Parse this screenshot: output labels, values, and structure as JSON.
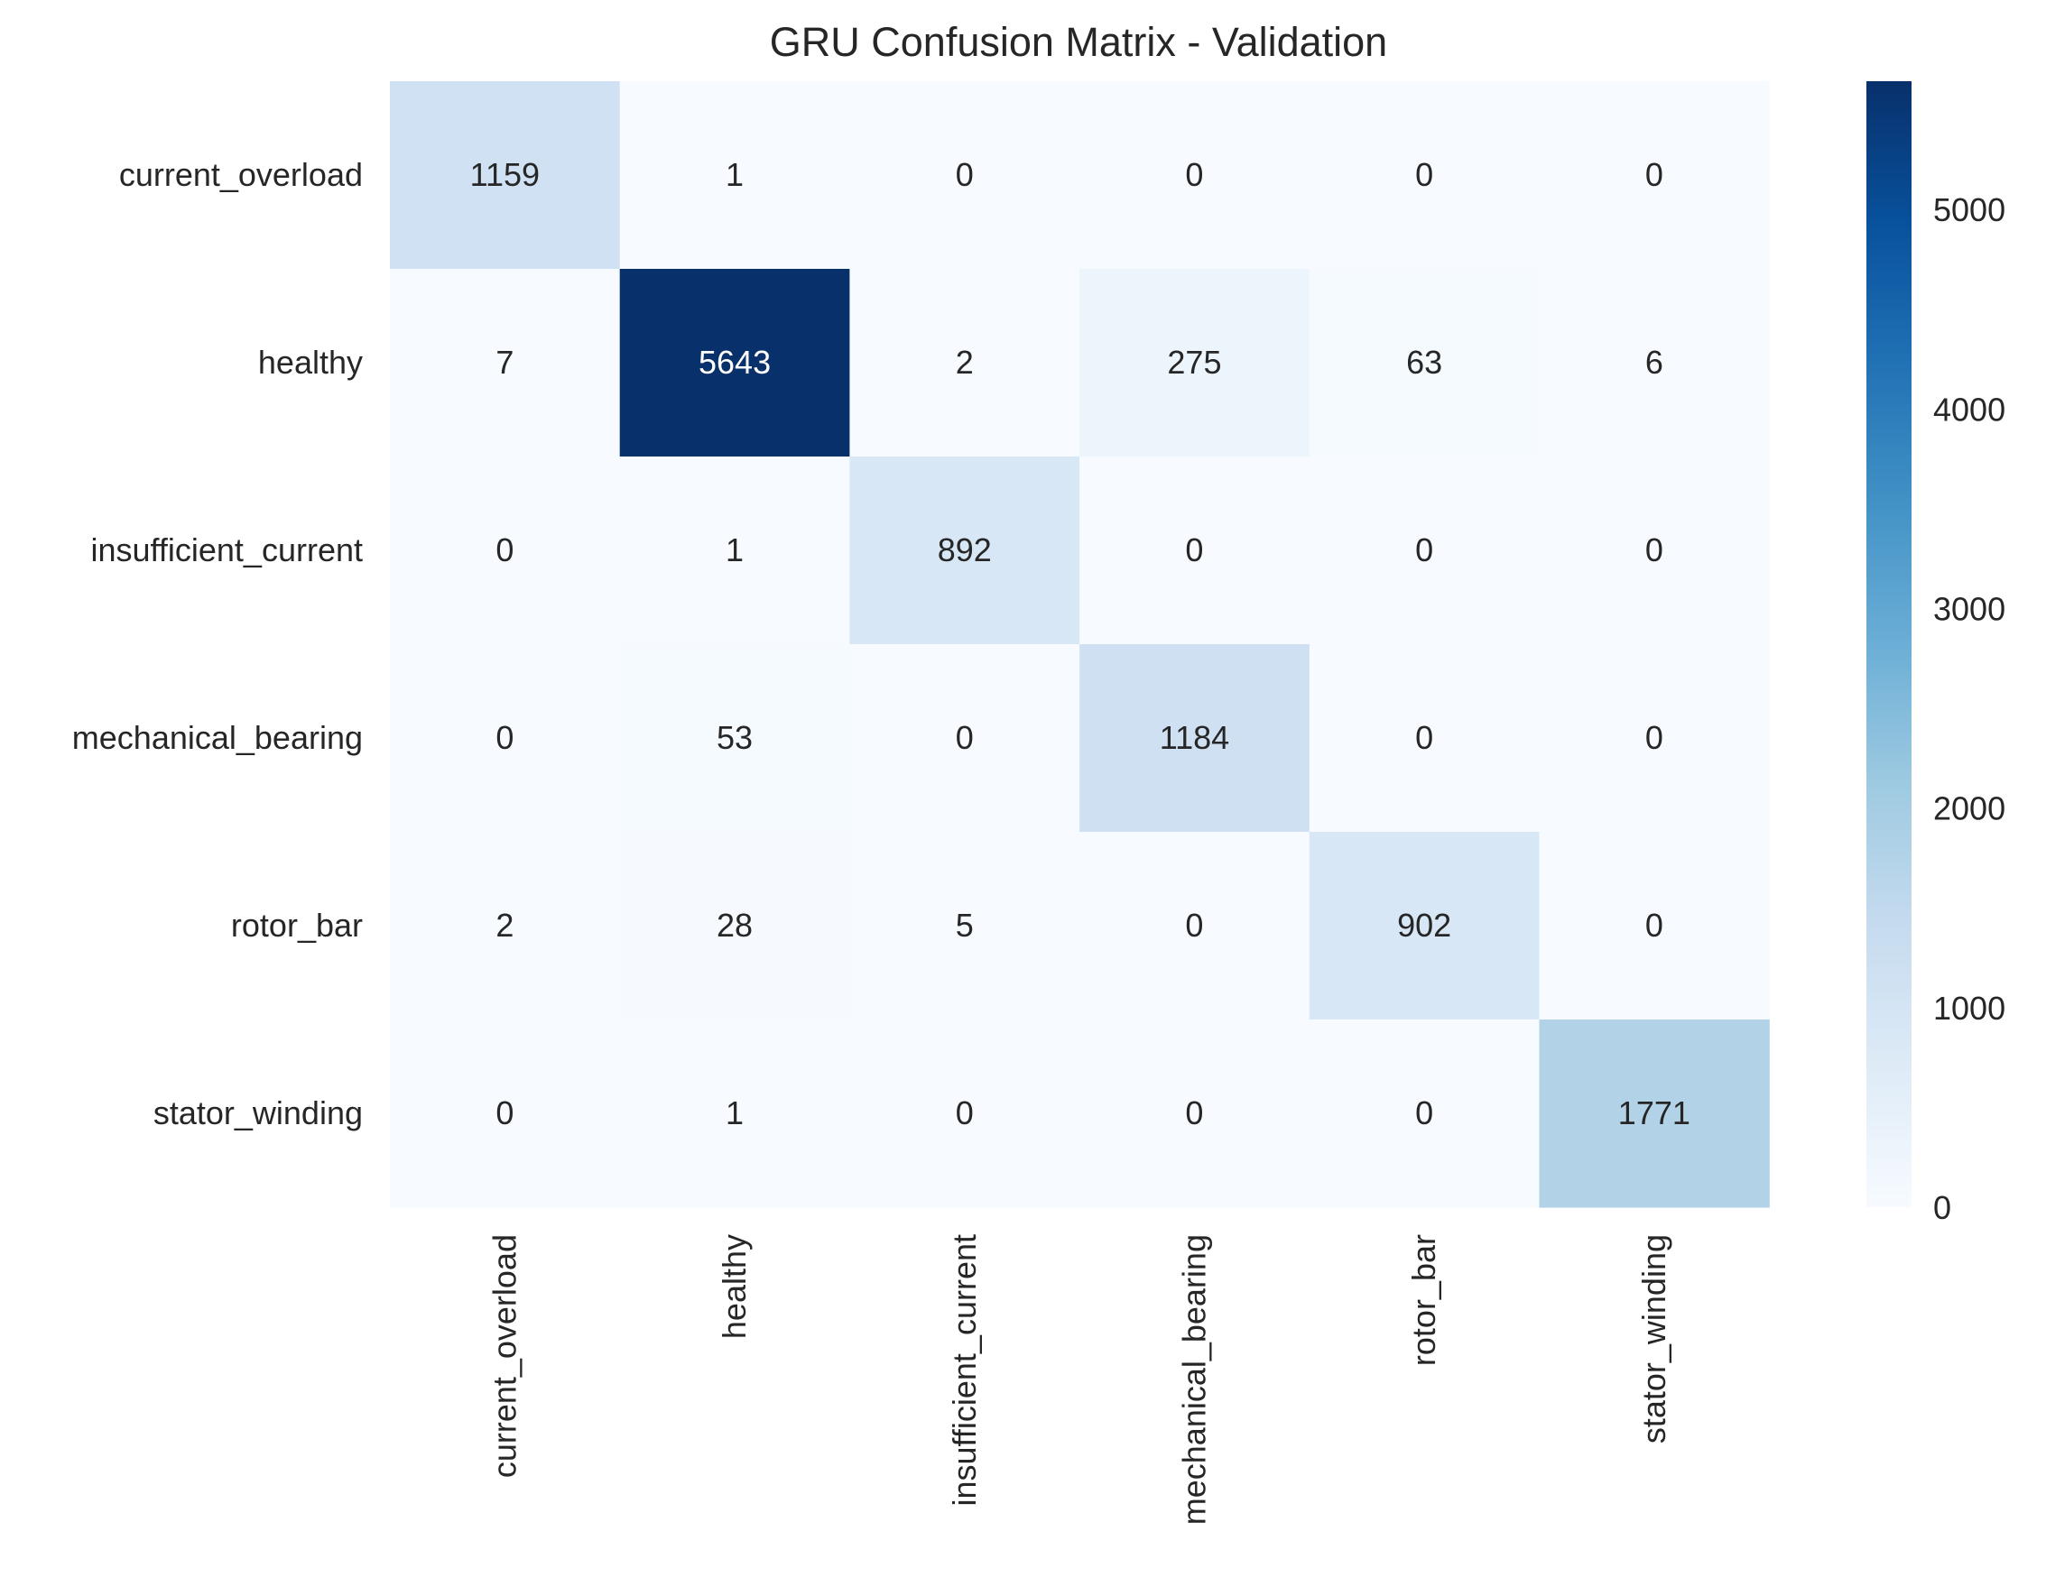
{
  "chart_data": {
    "type": "heatmap",
    "title": "GRU Confusion Matrix - Validation",
    "xlabel": "",
    "ylabel": "",
    "row_labels": [
      "current_overload",
      "healthy",
      "insufficient_current",
      "mechanical_bearing",
      "rotor_bar",
      "stator_winding"
    ],
    "col_labels": [
      "current_overload",
      "healthy",
      "insufficient_current",
      "mechanical_bearing",
      "rotor_bar",
      "stator_winding"
    ],
    "values": [
      [
        1159,
        1,
        0,
        0,
        0,
        0
      ],
      [
        7,
        5643,
        2,
        275,
        63,
        6
      ],
      [
        0,
        1,
        892,
        0,
        0,
        0
      ],
      [
        0,
        53,
        0,
        1184,
        0,
        0
      ],
      [
        2,
        28,
        5,
        0,
        902,
        0
      ],
      [
        0,
        1,
        0,
        0,
        0,
        1771
      ]
    ],
    "colormap": "Blues",
    "colorbar": {
      "range": [
        0,
        5643
      ],
      "ticks": [
        0,
        1000,
        2000,
        3000,
        4000,
        5000
      ]
    },
    "grid": false
  }
}
